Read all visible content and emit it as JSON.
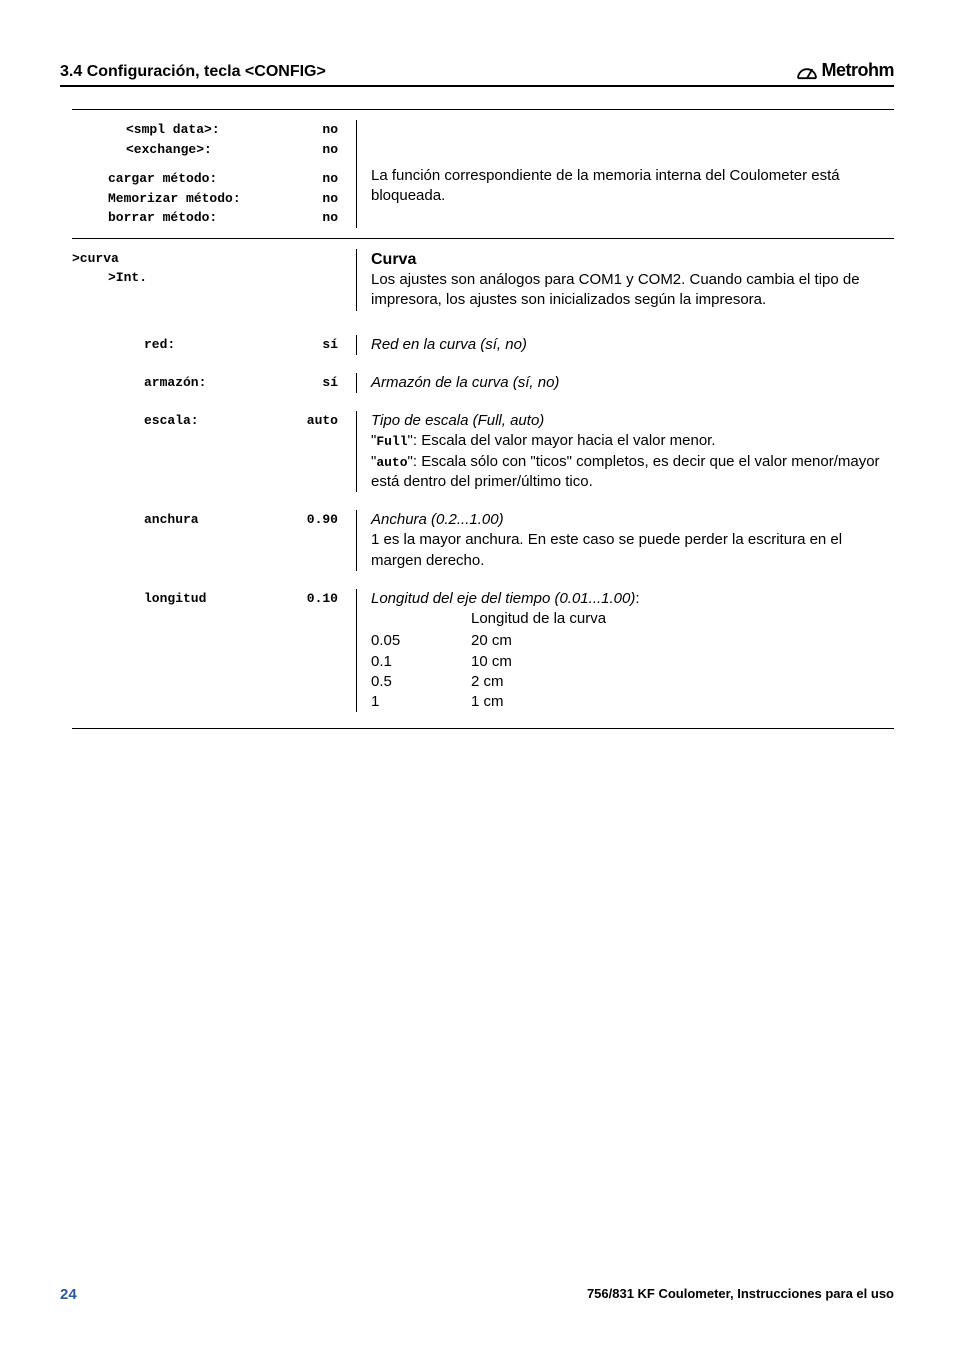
{
  "header": {
    "section_title": "3.4 Configuración, tecla <CONFIG>",
    "brand_text": "Metrohm"
  },
  "block_top": {
    "rows1": [
      {
        "k": "<smpl data>:",
        "v": "no"
      },
      {
        "k": "<exchange>:",
        "v": "no"
      }
    ],
    "rows2": [
      {
        "k": "cargar método:",
        "v": "no"
      },
      {
        "k": "Memorizar método:",
        "v": "no"
      },
      {
        "k": "borrar método:",
        "v": "no"
      }
    ],
    "desc": "La función correspondiente de la memoria interna del Coulometer está bloqueada."
  },
  "curva": {
    "head1": ">curva",
    "head2": ">Int.",
    "title": "Curva",
    "desc": "Los ajustes son análogos para COM1 y COM2. Cuando cambia el tipo de impresora, los ajustes son inicializados según la impresora.",
    "rows": [
      {
        "k": "red:",
        "v": "sí",
        "ital": "Red en la curva (sí, no)",
        "extra_html": ""
      },
      {
        "k": "armazón:",
        "v": "sí",
        "ital": "Armazón de la curva (sí, no)",
        "extra_html": ""
      },
      {
        "k": "escala:",
        "v": "auto",
        "ital": "Tipo de escala (Full, auto)",
        "extra_lines": [
          {
            "pre": "\"",
            "code": "Full",
            "post": "\": Escala del valor mayor hacia el valor menor."
          },
          {
            "pre": "\"",
            "code": "auto",
            "post": "\": Escala sólo con \"ticos\" completos, es decir que el valor menor/mayor está dentro del primer/último tico."
          }
        ]
      },
      {
        "k": "anchura",
        "v": "0.90",
        "ital": "Anchura (0.2...1.00)",
        "plain_lines": [
          "1 es la mayor anchura. En este caso se puede perder la escritura en el margen derecho."
        ]
      },
      {
        "k": "longitud",
        "v": "0.10",
        "ital": "Longitud del eje del tiempo (0.01...1.00)",
        "after_ital": ":",
        "sub_label": "Longitud de la curva",
        "table": [
          {
            "a": "0.05",
            "b": "20 cm"
          },
          {
            "a": "0.1",
            "b": "10 cm"
          },
          {
            "a": "0.5",
            "b": "2 cm"
          },
          {
            "a": "1",
            "b": "1 cm"
          }
        ]
      }
    ]
  },
  "footer": {
    "page": "24",
    "doc": "756/831 KF Coulometer, Instrucciones para el uso"
  }
}
